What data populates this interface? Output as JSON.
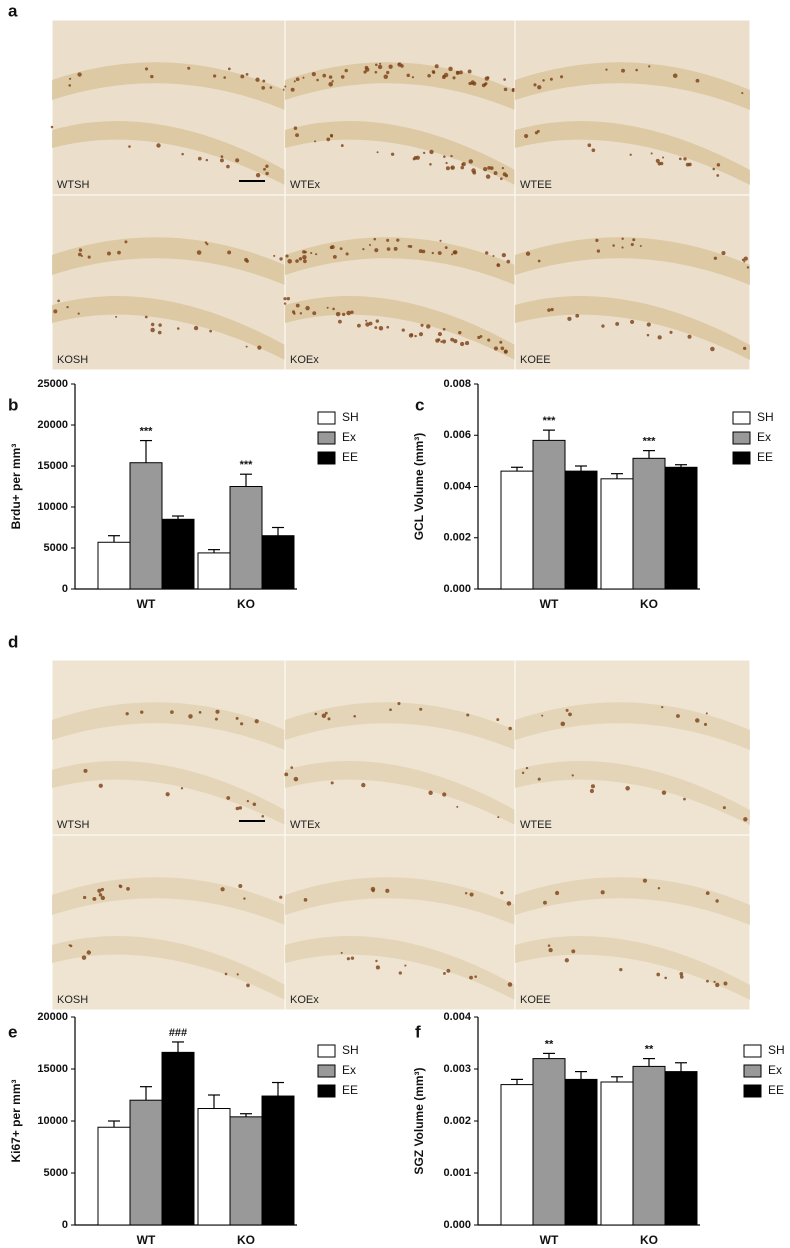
{
  "figure": {
    "letters": [
      "a",
      "b",
      "c",
      "d",
      "e",
      "f"
    ],
    "image_panels": [
      {
        "labels": [
          "WTSH",
          "WTEx",
          "WTEE",
          "KOSH",
          "KOEx",
          "KOEE"
        ]
      },
      {
        "labels": [
          "WTSH",
          "WTEx",
          "WTEE",
          "KOSH",
          "KOEx",
          "KOEE"
        ]
      }
    ]
  },
  "chart_data": [
    {
      "type": "bar",
      "y_label": "Brdu+ per mm³",
      "categories": [
        "WT",
        "KO"
      ],
      "ylim": [
        0,
        25000
      ],
      "yticks": [
        0,
        5000,
        10000,
        15000,
        20000,
        25000
      ],
      "legend": "right",
      "series": [
        {
          "name": "SH",
          "color": "#ffffff",
          "values": [
            5700,
            4400
          ],
          "errors": [
            800,
            400
          ],
          "significance": [
            null,
            null
          ]
        },
        {
          "name": "Ex",
          "color": "#999999",
          "values": [
            15400,
            12500
          ],
          "errors": [
            2700,
            1500
          ],
          "significance": [
            "***",
            "***"
          ]
        },
        {
          "name": "EE",
          "color": "#000000",
          "values": [
            8500,
            6500
          ],
          "errors": [
            400,
            1000
          ],
          "significance": [
            null,
            null
          ]
        }
      ]
    },
    {
      "type": "bar",
      "y_label": "GCL Volume (mm³)",
      "categories": [
        "WT",
        "KO"
      ],
      "ylim": [
        0,
        0.008
      ],
      "yticks": [
        {
          "value": 0,
          "label": "0.000"
        },
        {
          "value": 0.002,
          "label": "0.002"
        },
        {
          "value": 0.004,
          "label": "0.004"
        },
        {
          "value": 0.006,
          "label": "0.006"
        },
        {
          "value": 0.008,
          "label": "0.008"
        }
      ],
      "legend": "right",
      "series": [
        {
          "name": "SH",
          "color": "#ffffff",
          "values": [
            0.0046,
            0.0043
          ],
          "errors": [
            0.00015,
            0.0002
          ],
          "significance": [
            null,
            null
          ]
        },
        {
          "name": "Ex",
          "color": "#999999",
          "values": [
            0.0058,
            0.0051
          ],
          "errors": [
            0.0004,
            0.0003
          ],
          "significance": [
            "***",
            "***"
          ]
        },
        {
          "name": "EE",
          "color": "#000000",
          "values": [
            0.0046,
            0.00475
          ],
          "errors": [
            0.0002,
            0.0001
          ],
          "significance": [
            null,
            null
          ]
        }
      ]
    },
    {
      "type": "bar",
      "y_label": "Ki67+ per mm³",
      "categories": [
        "WT",
        "KO"
      ],
      "ylim": [
        0,
        20000
      ],
      "yticks": [
        0,
        5000,
        10000,
        15000,
        20000
      ],
      "legend": "right",
      "series": [
        {
          "name": "SH",
          "color": "#ffffff",
          "values": [
            9400,
            11200
          ],
          "errors": [
            600,
            1300
          ],
          "significance": [
            null,
            null
          ]
        },
        {
          "name": "Ex",
          "color": "#999999",
          "values": [
            12000,
            10400
          ],
          "errors": [
            1300,
            300
          ],
          "significance": [
            null,
            null
          ]
        },
        {
          "name": "EE",
          "color": "#000000",
          "values": [
            16600,
            12400
          ],
          "errors": [
            1000,
            1300
          ],
          "significance": [
            "###",
            null
          ]
        }
      ]
    },
    {
      "type": "bar",
      "y_label": "SGZ Volume (mm³)",
      "categories": [
        "WT",
        "KO"
      ],
      "ylim": [
        0,
        0.004
      ],
      "yticks": [
        {
          "value": 0,
          "label": "0.000"
        },
        {
          "value": 0.001,
          "label": "0.001"
        },
        {
          "value": 0.002,
          "label": "0.002"
        },
        {
          "value": 0.003,
          "label": "0.003"
        },
        {
          "value": 0.004,
          "label": "0.004"
        }
      ],
      "legend": "right",
      "series": [
        {
          "name": "SH",
          "color": "#ffffff",
          "values": [
            0.0027,
            0.00275
          ],
          "errors": [
            0.0001,
            0.0001
          ],
          "significance": [
            null,
            null
          ]
        },
        {
          "name": "Ex",
          "color": "#999999",
          "values": [
            0.0032,
            0.00305
          ],
          "errors": [
            0.0001,
            0.00015
          ],
          "significance": [
            "**",
            "**"
          ]
        },
        {
          "name": "EE",
          "color": "#000000",
          "values": [
            0.0028,
            0.00295
          ],
          "errors": [
            0.00015,
            0.00017
          ],
          "significance": [
            null,
            null
          ]
        }
      ]
    }
  ]
}
